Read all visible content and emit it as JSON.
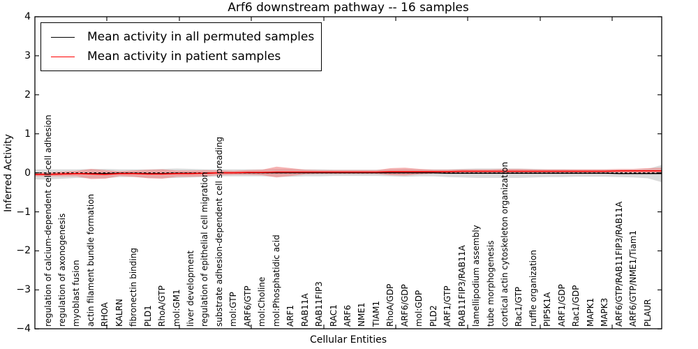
{
  "chart_data": {
    "type": "line",
    "title": "Arf6 downstream pathway -- 16 samples",
    "xlabel": "Cellular Entities",
    "ylabel": "Inferred Activity",
    "ylim": [
      -4,
      4
    ],
    "yticks": [
      4,
      3,
      2,
      1,
      0,
      -1,
      -2,
      -3,
      -4
    ],
    "ytick_labels": [
      "4",
      "3",
      "2",
      "1",
      "0",
      "−1",
      "−2",
      "−3",
      "−4"
    ],
    "grid": false,
    "legend_position": "upper left",
    "categories": [
      "regulation of calcium-dependent cell-cell adhesion",
      "regulation of axonogenesis",
      "myoblast fusion",
      "actin filament bundle formation",
      "RHOA",
      "KALRN",
      "fibronectin binding",
      "PLD1",
      "RhoA/GTP",
      "mol:GM1",
      "liver development",
      "regulation of epithelial cell migration",
      "substrate adhesion-dependent cell spreading",
      "mol:GTP",
      "ARF6/GTP",
      "mol:Choline",
      "mol:Phosphatidic acid",
      "ARF1",
      "RAB11A",
      "RAB11FIP3",
      "RAC1",
      "ARF6",
      "NME1",
      "TIAM1",
      "RhoA/GDP",
      "ARF6/GDP",
      "mol:GDP",
      "PLD2",
      "ARF1/GTP",
      "RAB11FIP3/RAB11A",
      "lamellipodium assembly",
      "tube morphogenesis",
      "cortical actin cytoskeleton organization",
      "Rac1/GTP",
      "ruffle organization",
      "PIP5K1A",
      "ARF1/GDP",
      "Rac1/GDP",
      "MAPK1",
      "MAPK3",
      "ARF6/GTP/RAB11FIP3/RAB11A",
      "ARF6/GTP/NME1/Tiam1",
      "PLAUR"
    ],
    "series": [
      {
        "name": "Mean activity in all permuted samples",
        "color": "#000000",
        "band_color": "#d4d4d4",
        "values": [
          -0.04,
          -0.03,
          -0.02,
          -0.02,
          -0.02,
          -0.01,
          -0.01,
          -0.02,
          -0.02,
          -0.01,
          -0.01,
          -0.01,
          0,
          0,
          0,
          0,
          0,
          0,
          0,
          0,
          0,
          0,
          0,
          0,
          0,
          0,
          0,
          0,
          -0.01,
          -0.01,
          -0.01,
          -0.01,
          -0.01,
          -0.01,
          -0.01,
          -0.01,
          -0.01,
          -0.01,
          -0.01,
          -0.01,
          -0.02,
          -0.02,
          -0.02
        ],
        "band_halfwidth": [
          0.13,
          0.12,
          0.11,
          0.12,
          0.12,
          0.1,
          0.1,
          0.11,
          0.12,
          0.12,
          0.11,
          0.1,
          0.09,
          0.09,
          0.09,
          0.09,
          0.1,
          0.1,
          0.09,
          0.09,
          0.08,
          0.08,
          0.08,
          0.08,
          0.09,
          0.1,
          0.09,
          0.09,
          0.1,
          0.11,
          0.12,
          0.12,
          0.12,
          0.12,
          0.11,
          0.1,
          0.1,
          0.09,
          0.09,
          0.09,
          0.09,
          0.1,
          0.12
        ]
      },
      {
        "name": "Mean activity in patient samples",
        "color": "#ff0000",
        "band_color": "#f08080",
        "values": [
          -0.04,
          -0.03,
          -0.02,
          -0.03,
          -0.04,
          -0.02,
          -0.02,
          -0.03,
          -0.03,
          -0.02,
          -0.02,
          -0.01,
          0,
          0,
          0.01,
          0.01,
          0.02,
          0.02,
          0.02,
          0.02,
          0.02,
          0.02,
          0.02,
          0.02,
          0.03,
          0.03,
          0.03,
          0.03,
          0.03,
          0.04,
          0.04,
          0.04,
          0.04,
          0.04,
          0.04,
          0.04,
          0.04,
          0.04,
          0.04,
          0.04,
          0.05,
          0.05,
          0.05
        ],
        "band_halfwidth": [
          0.05,
          0.06,
          0.07,
          0.13,
          0.11,
          0.06,
          0.08,
          0.11,
          0.12,
          0.08,
          0.08,
          0.08,
          0.06,
          0.05,
          0.06,
          0.07,
          0.14,
          0.1,
          0.06,
          0.05,
          0.05,
          0.05,
          0.05,
          0.05,
          0.09,
          0.1,
          0.07,
          0.05,
          0.05,
          0.05,
          0.05,
          0.05,
          0.06,
          0.06,
          0.05,
          0.05,
          0.05,
          0.05,
          0.05,
          0.05,
          0.05,
          0.05,
          0.07
        ]
      }
    ],
    "zero_line": {
      "value": 0,
      "style": "dashed",
      "color": "#000000"
    }
  }
}
